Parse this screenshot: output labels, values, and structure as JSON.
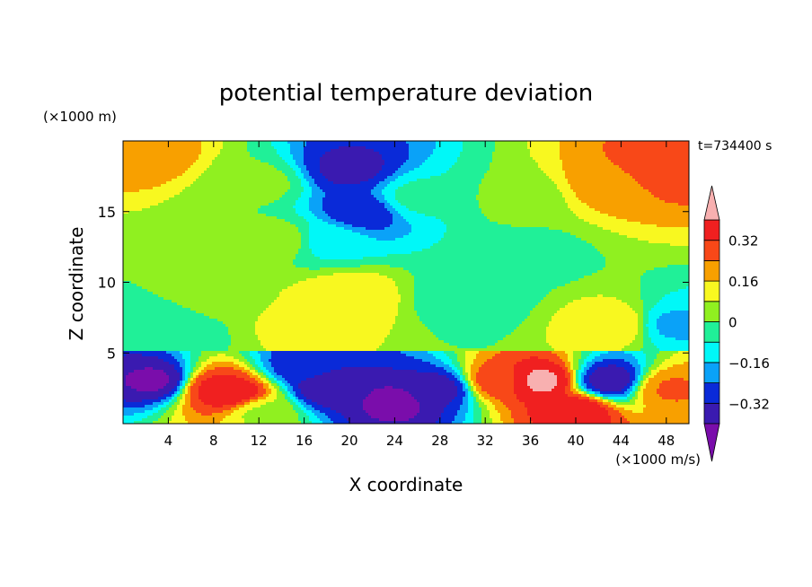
{
  "chart_data": {
    "type": "heatmap",
    "title": "potential temperature deviation",
    "xlabel": "X coordinate",
    "ylabel": "Z coordinate",
    "x_units": "(×1000 m/s)",
    "y_units": "(×1000 m)",
    "time_label": "t=734400 s",
    "xlim": [
      0,
      50
    ],
    "ylim": [
      0,
      20
    ],
    "x_ticks": [
      4,
      8,
      12,
      16,
      20,
      24,
      28,
      32,
      36,
      40,
      44,
      48
    ],
    "y_ticks": [
      5,
      10,
      15
    ],
    "colorbar": {
      "levels": [
        -0.4,
        -0.32,
        -0.24,
        -0.16,
        -0.08,
        0,
        0.08,
        0.16,
        0.24,
        0.32,
        0.4
      ],
      "tick_values": [
        -0.32,
        -0.16,
        0,
        0.16,
        0.32
      ],
      "tick_labels": [
        "−0.32",
        "−0.16",
        "0",
        "0.16",
        "0.32"
      ],
      "colors": [
        "#7a0dab",
        "#3a1ab0",
        "#0a2ad8",
        "#0aa2f8",
        "#00f8f8",
        "#20f098",
        "#90f020",
        "#f8f820",
        "#f8a000",
        "#f84818",
        "#f02020",
        "#f8b0b0"
      ],
      "extend": "both"
    },
    "features": [
      {
        "x": 2,
        "z": 19,
        "value": 0.2
      },
      {
        "x": 47,
        "z": 18,
        "value": 0.3
      },
      {
        "x": 43,
        "z": 17,
        "value": 0.2
      },
      {
        "x": 20,
        "z": 18,
        "value": -0.34
      },
      {
        "x": 21,
        "z": 15,
        "value": -0.3
      },
      {
        "x": 18,
        "z": 13,
        "value": -0.12
      },
      {
        "x": 12,
        "z": 17,
        "value": 0.02
      },
      {
        "x": 26,
        "z": 16,
        "value": -0.06
      },
      {
        "x": 35,
        "z": 16,
        "value": 0.02
      },
      {
        "x": 8,
        "z": 9,
        "value": 0.06
      },
      {
        "x": 20,
        "z": 9,
        "value": 0.14
      },
      {
        "x": 16,
        "z": 7,
        "value": 0.1
      },
      {
        "x": 44,
        "z": 7,
        "value": 0.16
      },
      {
        "x": 14,
        "z": 13,
        "value": 0.05
      },
      {
        "x": 36,
        "z": 12,
        "value": -0.02
      },
      {
        "x": 4,
        "z": 7,
        "value": -0.08
      },
      {
        "x": 30,
        "z": 9,
        "value": -0.05
      },
      {
        "x": 48,
        "z": 7,
        "value": -0.18
      },
      {
        "x": 8,
        "z": 2.5,
        "value": 0.35
      },
      {
        "x": 10,
        "z": 2,
        "value": 0.4
      },
      {
        "x": 3,
        "z": 3,
        "value": -0.42
      },
      {
        "x": 18,
        "z": 2.5,
        "value": -0.38
      },
      {
        "x": 16,
        "z": 4,
        "value": -0.3
      },
      {
        "x": 24,
        "z": 1.5,
        "value": -0.42
      },
      {
        "x": 28,
        "z": 2.5,
        "value": -0.36
      },
      {
        "x": 37,
        "z": 3,
        "value": 0.42
      },
      {
        "x": 33,
        "z": 3,
        "value": 0.3
      },
      {
        "x": 43,
        "z": 3,
        "value": -0.38
      },
      {
        "x": 48,
        "z": 2.5,
        "value": 0.25
      },
      {
        "x": 12,
        "z": 1,
        "value": 0.05
      },
      {
        "x": 40,
        "z": 1,
        "value": 0.38
      }
    ]
  }
}
